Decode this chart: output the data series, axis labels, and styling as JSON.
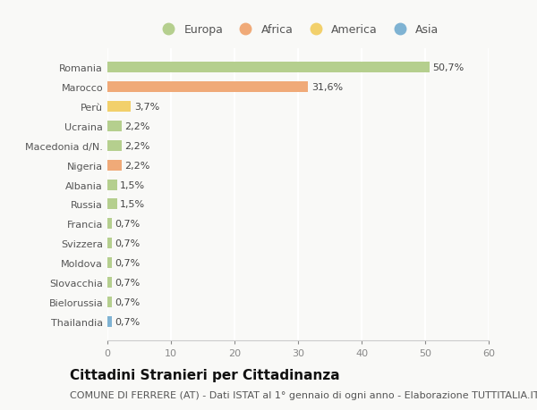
{
  "categories": [
    "Thailandia",
    "Bielorussia",
    "Slovacchia",
    "Moldova",
    "Svizzera",
    "Francia",
    "Russia",
    "Albania",
    "Nigeria",
    "Macedonia d/N.",
    "Ucraina",
    "Perù",
    "Marocco",
    "Romania"
  ],
  "values": [
    0.7,
    0.7,
    0.7,
    0.7,
    0.7,
    0.7,
    1.5,
    1.5,
    2.2,
    2.2,
    2.2,
    3.7,
    31.6,
    50.7
  ],
  "labels": [
    "0,7%",
    "0,7%",
    "0,7%",
    "0,7%",
    "0,7%",
    "0,7%",
    "1,5%",
    "1,5%",
    "2,2%",
    "2,2%",
    "2,2%",
    "3,7%",
    "31,6%",
    "50,7%"
  ],
  "colors": [
    "#7fb3d3",
    "#b5cf8e",
    "#b5cf8e",
    "#b5cf8e",
    "#b5cf8e",
    "#b5cf8e",
    "#b5cf8e",
    "#b5cf8e",
    "#f0aa78",
    "#b5cf8e",
    "#b5cf8e",
    "#f2d06b",
    "#f0aa78",
    "#b5cf8e"
  ],
  "legend_labels": [
    "Europa",
    "Africa",
    "America",
    "Asia"
  ],
  "legend_colors": [
    "#b5cf8e",
    "#f0aa78",
    "#f2d06b",
    "#7fb3d3"
  ],
  "title": "Cittadini Stranieri per Cittadinanza",
  "subtitle": "COMUNE DI FERRERE (AT) - Dati ISTAT al 1° gennaio di ogni anno - Elaborazione TUTTITALIA.IT",
  "xlim": [
    0,
    60
  ],
  "xticks": [
    0,
    10,
    20,
    30,
    40,
    50,
    60
  ],
  "background_color": "#f9f9f7",
  "bar_height": 0.55,
  "title_fontsize": 11,
  "subtitle_fontsize": 8,
  "label_fontsize": 8,
  "tick_fontsize": 8,
  "legend_fontsize": 9
}
